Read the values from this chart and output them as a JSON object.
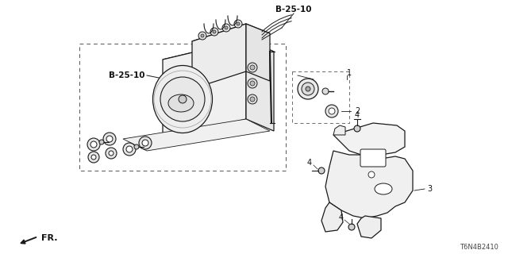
{
  "bg_color": "#ffffff",
  "label_b2510_top": "B-25-10",
  "label_b2510_left": "B-25-10",
  "label_1": "1",
  "label_2": "2",
  "label_3": "3",
  "label_4": "4",
  "fr_label": "FR.",
  "part_number": "T6N4B2410",
  "line_color": "#1a1a1a",
  "text_color": "#111111",
  "dashed_color": "#555555"
}
